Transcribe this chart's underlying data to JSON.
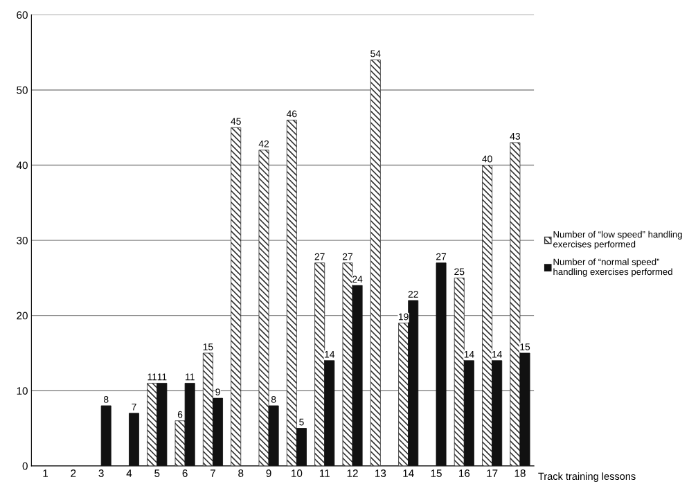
{
  "chart_data": {
    "type": "bar",
    "xlabel": "Track training lessons",
    "categories": [
      "1",
      "2",
      "3",
      "4",
      "5",
      "6",
      "7",
      "8",
      "9",
      "10",
      "11",
      "12",
      "13",
      "14",
      "15",
      "16",
      "17",
      "18"
    ],
    "series": [
      {
        "name": "Number of “low speed” handling\nexercises performed",
        "color": "#333333",
        "values": [
          null,
          null,
          null,
          null,
          11,
          6,
          15,
          45,
          42,
          46,
          27,
          27,
          54,
          19,
          null,
          25,
          40,
          43
        ]
      },
      {
        "name": "Number of “normal speed”\nhandling exercises performed",
        "color": "#111111",
        "values": [
          null,
          null,
          8,
          7,
          11,
          11,
          9,
          null,
          8,
          5,
          14,
          24,
          null,
          22,
          27,
          14,
          14,
          15
        ]
      }
    ],
    "ylim": [
      0,
      60
    ],
    "yticks": [
      0,
      10,
      20,
      30,
      40,
      50,
      60
    ],
    "grid": "y",
    "legend": "right",
    "data_labels": true
  }
}
